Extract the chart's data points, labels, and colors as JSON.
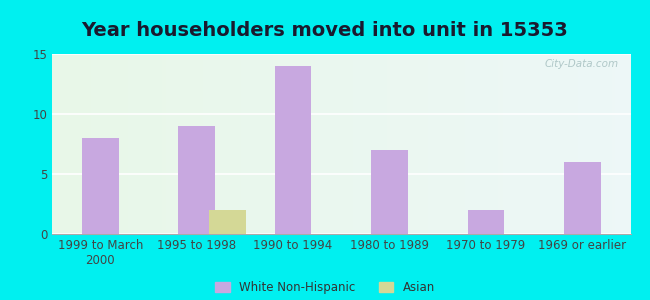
{
  "title": "Year householders moved into unit in 15353",
  "categories": [
    "1999 to March\n2000",
    "1995 to 1998",
    "1990 to 1994",
    "1980 to 1989",
    "1970 to 1979",
    "1969 or earlier"
  ],
  "white_values": [
    8,
    9,
    14,
    7,
    2,
    6
  ],
  "asian_values": [
    0,
    2,
    0,
    0,
    0,
    0
  ],
  "white_color": "#c8a8e0",
  "asian_color": "#d4d896",
  "bg_outer": "#00f0f0",
  "ylim": [
    0,
    15
  ],
  "yticks": [
    0,
    5,
    10,
    15
  ],
  "bar_width": 0.38,
  "legend_white": "White Non-Hispanic",
  "legend_asian": "Asian",
  "watermark": "City-Data.com",
  "title_fontsize": 14,
  "tick_fontsize": 8.5
}
